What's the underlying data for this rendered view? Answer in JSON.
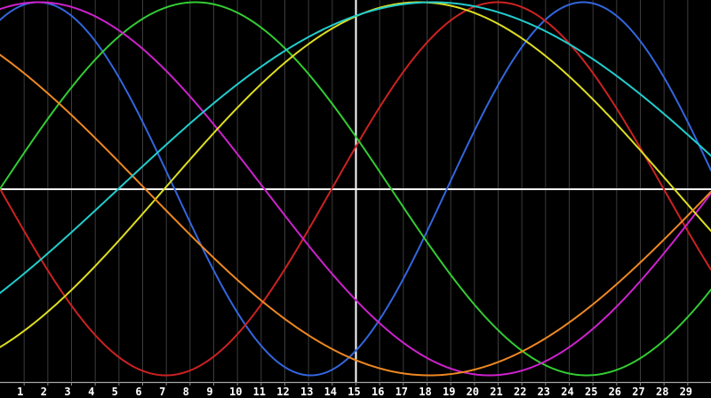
{
  "app": {
    "description": "biorhythm sine-wave chart"
  },
  "colors": {
    "background": "#000000",
    "gridline": "#3d3d3d",
    "axis_line": "#a8a8a8",
    "tick": "#8a8a8a",
    "midline": "#ffffff",
    "marker_line": "#ffffff",
    "label_text": "#ffffff"
  },
  "chart_data": {
    "type": "line",
    "title": "",
    "x_axis": {
      "tick_labels": [
        "1",
        "2",
        "3",
        "4",
        "5",
        "6",
        "7",
        "8",
        "9",
        "10",
        "11",
        "12",
        "13",
        "14",
        "15",
        "16",
        "17",
        "18",
        "19",
        "20",
        "21",
        "22",
        "23",
        "24",
        "25",
        "26",
        "27",
        "28",
        "29"
      ],
      "units_shown": 30,
      "gridlines": true
    },
    "y_axis": {
      "range": [
        -1,
        1
      ],
      "midline_value": 0,
      "labels_visible": false
    },
    "marker_day": 15,
    "legend": "none",
    "series": [
      {
        "name": "blue-sine",
        "period_days": 23,
        "zero_day": -4.14,
        "amplitude": 1,
        "color": "#3366DD"
      },
      {
        "name": "red-sine",
        "period_days": 28,
        "zero_day": 14.0,
        "amplitude": 1,
        "color": "#CC2222"
      },
      {
        "name": "green-sine",
        "period_days": 33,
        "zero_day": 0.0,
        "amplitude": 1,
        "color": "#33CC33"
      },
      {
        "name": "magenta-sine",
        "period_days": 38,
        "zero_day": -7.85,
        "amplitude": 1,
        "color": "#CC22CC"
      },
      {
        "name": "yellow-sine",
        "period_days": 43,
        "zero_day": 6.94,
        "amplitude": 1,
        "color": "#DDDD22"
      },
      {
        "name": "orange-sine",
        "period_days": 48,
        "zero_day": -17.88,
        "amplitude": 1,
        "color": "#EE8822"
      },
      {
        "name": "cyan-sine",
        "period_days": 53,
        "zero_day": 5.0,
        "amplitude": 1,
        "color": "#22CCCC"
      }
    ]
  }
}
